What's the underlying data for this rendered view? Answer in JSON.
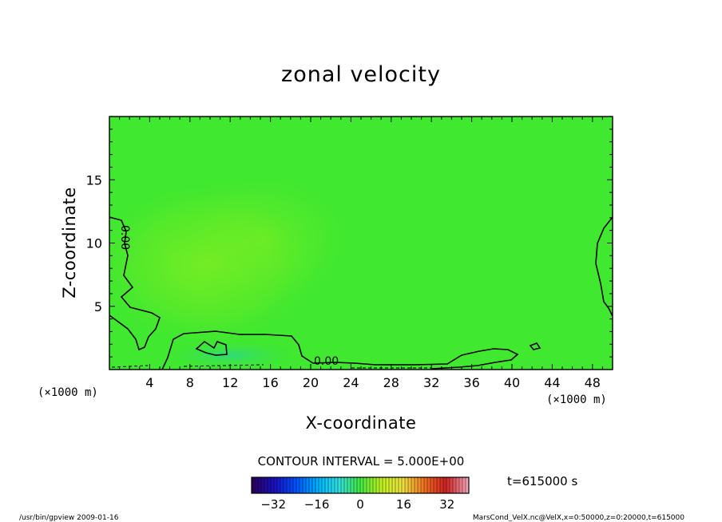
{
  "chart_data": {
    "type": "heatmap",
    "title": "zonal velocity",
    "xlabel": "X-coordinate",
    "ylabel": "Z-coordinate",
    "x_unit": "(×1000 m)",
    "xlim": [
      0,
      50
    ],
    "ylim": [
      0,
      20
    ],
    "x_ticks": [
      4,
      8,
      12,
      16,
      20,
      24,
      28,
      32,
      36,
      40,
      44,
      48
    ],
    "y_ticks": [
      5,
      10,
      15
    ],
    "contour_label": "0.00",
    "contour_interval_text": "CONTOUR INTERVAL = 5.000E+00",
    "time_text": "t=615000 s",
    "colorbar": {
      "range": [
        -40,
        40
      ],
      "ticks": [
        -32,
        -16,
        0,
        16,
        32
      ],
      "palette": [
        "#2a0060",
        "#1a10c0",
        "#0050ff",
        "#00b0ff",
        "#30e0e0",
        "#40e840",
        "#c0f020",
        "#f0e040",
        "#f07020",
        "#d02020",
        "#f0a0b0"
      ]
    },
    "field_colors": {
      "background": "#40e830",
      "positive_region": "#78ec28",
      "weak_negative_region": "#3ede5c"
    }
  },
  "footer": {
    "left": "/usr/bin/gpview 2009-01-16",
    "right": "MarsCond_VelX.nc@VelX,x=0:50000,z=0:20000,t=615000"
  }
}
